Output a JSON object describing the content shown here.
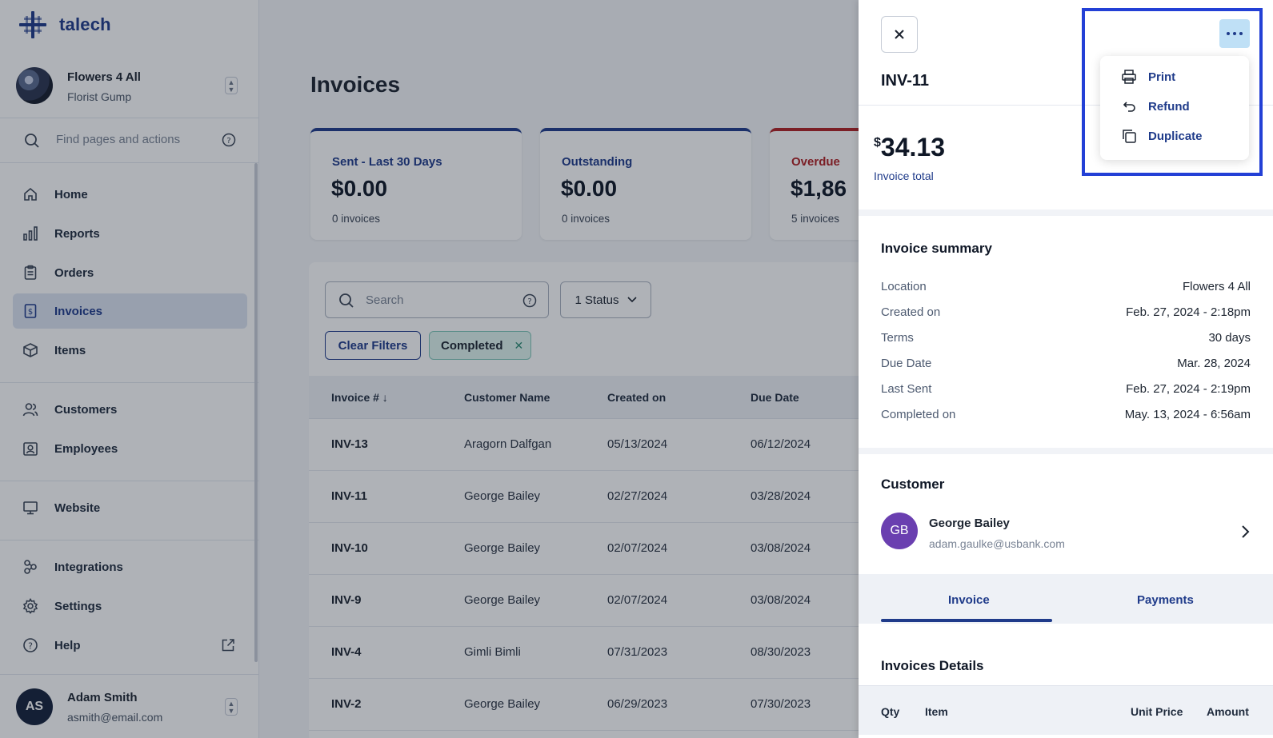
{
  "brand": {
    "name": "talech"
  },
  "account": {
    "name": "Flowers 4 All",
    "role": "Florist Gump"
  },
  "find": {
    "placeholder": "Find pages and actions"
  },
  "nav": {
    "home": "Home",
    "reports": "Reports",
    "orders": "Orders",
    "invoices": "Invoices",
    "items": "Items",
    "customers": "Customers",
    "employees": "Employees",
    "website": "Website",
    "integrations": "Integrations",
    "settings": "Settings",
    "help": "Help"
  },
  "user": {
    "initials": "AS",
    "name": "Adam Smith",
    "email": "asmith@email.com"
  },
  "main": {
    "title": "Invoices",
    "cards": [
      {
        "title": "Sent - Last 30 Days",
        "value": "$0.00",
        "count": "0 invoices"
      },
      {
        "title": "Outstanding",
        "value": "$0.00",
        "count": "0 invoices"
      },
      {
        "title": "Overdue",
        "value": "$1,86",
        "count": "5 invoices"
      }
    ],
    "search_placeholder": "Search",
    "status_filter": "1 Status",
    "clear_filters": "Clear Filters",
    "chip": "Completed",
    "columns": [
      "Invoice #",
      "Customer Name",
      "Created on",
      "Due Date"
    ],
    "rows": [
      {
        "invoice": "INV-13",
        "customer": "Aragorn Dalfgan",
        "created": "05/13/2024",
        "due": "06/12/2024"
      },
      {
        "invoice": "INV-11",
        "customer": "George Bailey",
        "created": "02/27/2024",
        "due": "03/28/2024"
      },
      {
        "invoice": "INV-10",
        "customer": "George Bailey",
        "created": "02/07/2024",
        "due": "03/08/2024"
      },
      {
        "invoice": "INV-9",
        "customer": "George Bailey",
        "created": "02/07/2024",
        "due": "03/08/2024"
      },
      {
        "invoice": "INV-4",
        "customer": "Gimli Bimli",
        "created": "07/31/2023",
        "due": "08/30/2023"
      },
      {
        "invoice": "INV-2",
        "customer": "George Bailey",
        "created": "06/29/2023",
        "due": "07/30/2023"
      }
    ]
  },
  "drawer": {
    "invoice_id": "INV-11",
    "currency_symbol": "$",
    "total": "34.13",
    "total_label": "Invoice total",
    "summary_title": "Invoice summary",
    "summary": [
      {
        "key": "Location",
        "value": "Flowers 4 All"
      },
      {
        "key": "Created on",
        "value": "Feb. 27, 2024 - 2:18pm"
      },
      {
        "key": "Terms",
        "value": "30 days"
      },
      {
        "key": "Due Date",
        "value": "Mar. 28, 2024"
      },
      {
        "key": "Last Sent",
        "value": "Feb. 27, 2024 - 2:19pm"
      },
      {
        "key": "Completed on",
        "value": "May. 13, 2024 - 6:56am"
      }
    ],
    "customer_title": "Customer",
    "customer": {
      "initials": "GB",
      "name": "George Bailey",
      "email": "adam.gaulke@usbank.com"
    },
    "tabs": [
      "Invoice",
      "Payments"
    ],
    "details_title": "Invoices Details",
    "details_columns": [
      "Qty",
      "Item",
      "Unit Price",
      "Amount"
    ]
  },
  "menu": {
    "print": "Print",
    "refund": "Refund",
    "duplicate": "Duplicate"
  },
  "colors": {
    "brand": "#1f3b8a",
    "overdue": "#b02024",
    "highlight": "#2340d6",
    "customer_avatar": "#6a3fb0"
  }
}
